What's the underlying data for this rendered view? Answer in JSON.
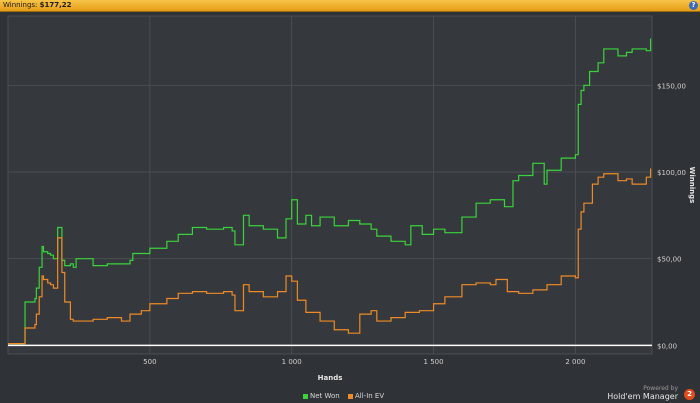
{
  "header": {
    "label": "Winnings:",
    "value": "$177,22",
    "help": "?"
  },
  "chart_data": {
    "type": "line",
    "xlabel": "Hands",
    "ylabel": "Winnings",
    "xlim": [
      0,
      2270
    ],
    "ylim": [
      -5,
      190
    ],
    "grid": true,
    "xticks": [
      500,
      1000,
      1500,
      2000
    ],
    "xtick_labels": [
      "500",
      "1 000",
      "1 500",
      "2 000"
    ],
    "yticks": [
      0,
      50,
      100,
      150
    ],
    "ytick_labels": [
      "$0,00",
      "$50,00",
      "$100,00",
      "$150,00"
    ],
    "legend_position": "bottom-center",
    "series": [
      {
        "name": "Net Won",
        "color": "#39d43b",
        "x": [
          0,
          55,
          60,
          95,
          100,
          110,
          120,
          125,
          140,
          150,
          160,
          175,
          190,
          200,
          220,
          230,
          240,
          300,
          350,
          430,
          440,
          500,
          560,
          600,
          650,
          700,
          760,
          790,
          800,
          830,
          850,
          900,
          950,
          980,
          1000,
          1020,
          1050,
          1070,
          1100,
          1150,
          1200,
          1240,
          1280,
          1300,
          1350,
          1400,
          1420,
          1460,
          1500,
          1540,
          1600,
          1650,
          1700,
          1750,
          1780,
          1800,
          1850,
          1890,
          1900,
          1950,
          2000,
          2010,
          2020,
          2030,
          2050,
          2080,
          2100,
          2150,
          2180,
          2200,
          2250,
          2265
        ],
        "y": [
          1,
          1,
          25,
          27,
          33,
          45,
          57,
          54,
          53,
          52,
          50,
          68,
          49,
          46,
          47,
          45,
          50,
          46,
          47,
          49,
          53,
          56,
          60,
          64,
          68,
          67,
          68,
          66,
          58,
          75,
          69,
          67,
          62,
          73,
          84,
          70,
          75,
          69,
          74,
          69,
          72,
          70,
          67,
          63,
          60,
          58,
          69,
          64,
          67,
          65,
          74,
          82,
          84,
          80,
          95,
          98,
          105,
          93,
          101,
          108,
          110,
          139,
          147,
          150,
          158,
          163,
          171,
          167,
          169,
          171,
          170,
          177
        ]
      },
      {
        "name": "All-In EV",
        "color": "#ef8a26",
        "x": [
          0,
          55,
          60,
          95,
          100,
          110,
          120,
          125,
          140,
          150,
          160,
          175,
          190,
          200,
          220,
          230,
          300,
          350,
          400,
          430,
          470,
          500,
          560,
          600,
          650,
          700,
          760,
          790,
          800,
          830,
          850,
          900,
          950,
          980,
          1000,
          1020,
          1050,
          1100,
          1150,
          1200,
          1240,
          1280,
          1300,
          1350,
          1400,
          1450,
          1500,
          1540,
          1600,
          1650,
          1700,
          1720,
          1760,
          1800,
          1850,
          1900,
          1950,
          2000,
          2010,
          2020,
          2030,
          2060,
          2080,
          2100,
          2150,
          2180,
          2200,
          2250,
          2265
        ],
        "y": [
          1,
          1,
          10,
          12,
          18,
          28,
          40,
          38,
          36,
          35,
          33,
          62,
          42,
          25,
          15,
          14,
          15,
          16,
          14,
          18,
          20,
          24,
          27,
          30,
          31,
          30,
          31,
          29,
          20,
          35,
          31,
          28,
          31,
          40,
          37,
          26,
          19,
          14,
          9,
          7,
          18,
          20,
          14,
          16,
          19,
          20,
          24,
          28,
          35,
          36,
          35,
          38,
          31,
          30,
          32,
          35,
          40,
          39,
          67,
          77,
          82,
          93,
          97,
          99,
          95,
          96,
          93,
          97,
          102
        ]
      }
    ]
  },
  "branding": {
    "powered_by": "Powered by",
    "product": "Hold'em Manager",
    "badge": "2"
  }
}
